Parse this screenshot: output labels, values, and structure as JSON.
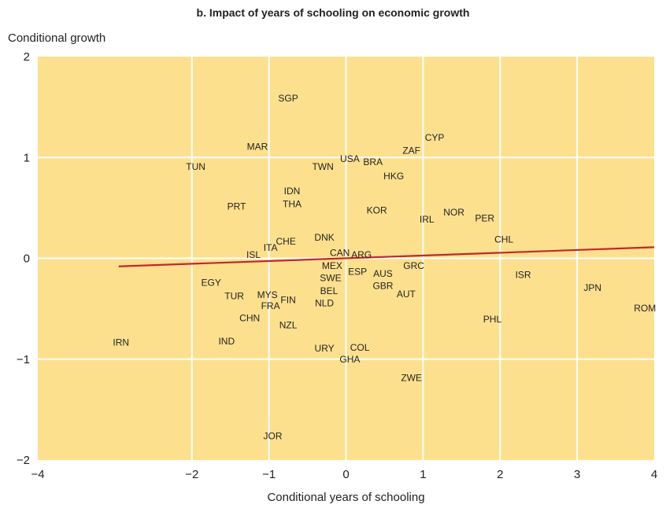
{
  "chart_data": {
    "type": "scatter",
    "title": "b. Impact of years of schooling on economic growth",
    "xlabel": "Conditional years of schooling",
    "ylabel": "Conditional growth",
    "xlim": [
      -4,
      4
    ],
    "ylim": [
      -2,
      2
    ],
    "xticks": [
      "−4",
      "−2",
      "−1",
      "0",
      "1",
      "2",
      "3",
      "4"
    ],
    "xtick_values": [
      -4,
      -2,
      -1,
      0,
      1,
      2,
      3,
      4
    ],
    "yticks": [
      "2",
      "1",
      "0",
      "−1",
      "−2"
    ],
    "ytick_values": [
      2,
      1,
      0,
      -1,
      -2
    ],
    "grid": true,
    "background_color": "#fde08e",
    "grid_color": "#ffffff",
    "trend_color": "#c0282d",
    "trend_line": {
      "x": [
        -2.95,
        4
      ],
      "y": [
        -0.08,
        0.11
      ]
    },
    "points": [
      {
        "label": "SGP",
        "x": -0.75,
        "y": 1.58
      },
      {
        "label": "CYP",
        "x": 1.15,
        "y": 1.19
      },
      {
        "label": "MAR",
        "x": -1.15,
        "y": 1.1
      },
      {
        "label": "ZAF",
        "x": 0.85,
        "y": 1.06
      },
      {
        "label": "USA",
        "x": 0.05,
        "y": 0.98
      },
      {
        "label": "BRA",
        "x": 0.35,
        "y": 0.95
      },
      {
        "label": "TUN",
        "x": -1.95,
        "y": 0.9
      },
      {
        "label": "TWN",
        "x": -0.3,
        "y": 0.9
      },
      {
        "label": "HKG",
        "x": 0.62,
        "y": 0.81
      },
      {
        "label": "IDN",
        "x": -0.7,
        "y": 0.66
      },
      {
        "label": "PRT",
        "x": -1.42,
        "y": 0.51
      },
      {
        "label": "THA",
        "x": -0.7,
        "y": 0.53
      },
      {
        "label": "KOR",
        "x": 0.4,
        "y": 0.47
      },
      {
        "label": "NOR",
        "x": 1.4,
        "y": 0.45
      },
      {
        "label": "PER",
        "x": 1.8,
        "y": 0.39
      },
      {
        "label": "IRL",
        "x": 1.05,
        "y": 0.38
      },
      {
        "label": "DNK",
        "x": -0.28,
        "y": 0.2
      },
      {
        "label": "CHL",
        "x": 2.05,
        "y": 0.18
      },
      {
        "label": "CHE",
        "x": -0.78,
        "y": 0.16
      },
      {
        "label": "ITA",
        "x": -0.98,
        "y": 0.1
      },
      {
        "label": "ISL",
        "x": -1.2,
        "y": 0.03
      },
      {
        "label": "CAN",
        "x": -0.08,
        "y": 0.05
      },
      {
        "label": "ARG",
        "x": 0.2,
        "y": 0.03
      },
      {
        "label": "MEX",
        "x": -0.18,
        "y": -0.08
      },
      {
        "label": "GRC",
        "x": 0.88,
        "y": -0.08
      },
      {
        "label": "ESP",
        "x": 0.15,
        "y": -0.14
      },
      {
        "label": "AUS",
        "x": 0.48,
        "y": -0.16
      },
      {
        "label": "SWE",
        "x": -0.2,
        "y": -0.2
      },
      {
        "label": "ISR",
        "x": 2.3,
        "y": -0.17
      },
      {
        "label": "EGY",
        "x": -1.75,
        "y": -0.25
      },
      {
        "label": "GBR",
        "x": 0.48,
        "y": -0.28
      },
      {
        "label": "JPN",
        "x": 3.2,
        "y": -0.3
      },
      {
        "label": "BEL",
        "x": -0.22,
        "y": -0.33
      },
      {
        "label": "AUT",
        "x": 0.78,
        "y": -0.36
      },
      {
        "label": "TUR",
        "x": -1.45,
        "y": -0.38
      },
      {
        "label": "MYS",
        "x": -1.02,
        "y": -0.37
      },
      {
        "label": "FIN",
        "x": -0.75,
        "y": -0.42
      },
      {
        "label": "FRA",
        "x": -0.98,
        "y": -0.48
      },
      {
        "label": "NLD",
        "x": -0.28,
        "y": -0.45
      },
      {
        "label": "ROM",
        "x": 3.88,
        "y": -0.5
      },
      {
        "label": "CHN",
        "x": -1.25,
        "y": -0.6
      },
      {
        "label": "PHL",
        "x": 1.9,
        "y": -0.61
      },
      {
        "label": "NZL",
        "x": -0.75,
        "y": -0.67
      },
      {
        "label": "IRN",
        "x": -2.92,
        "y": -0.84
      },
      {
        "label": "IND",
        "x": -1.55,
        "y": -0.83
      },
      {
        "label": "URY",
        "x": -0.28,
        "y": -0.9
      },
      {
        "label": "COL",
        "x": 0.18,
        "y": -0.89
      },
      {
        "label": "GHA",
        "x": 0.05,
        "y": -1.01
      },
      {
        "label": "ZWE",
        "x": 0.85,
        "y": -1.19
      },
      {
        "label": "JOR",
        "x": -0.95,
        "y": -1.77
      }
    ]
  }
}
